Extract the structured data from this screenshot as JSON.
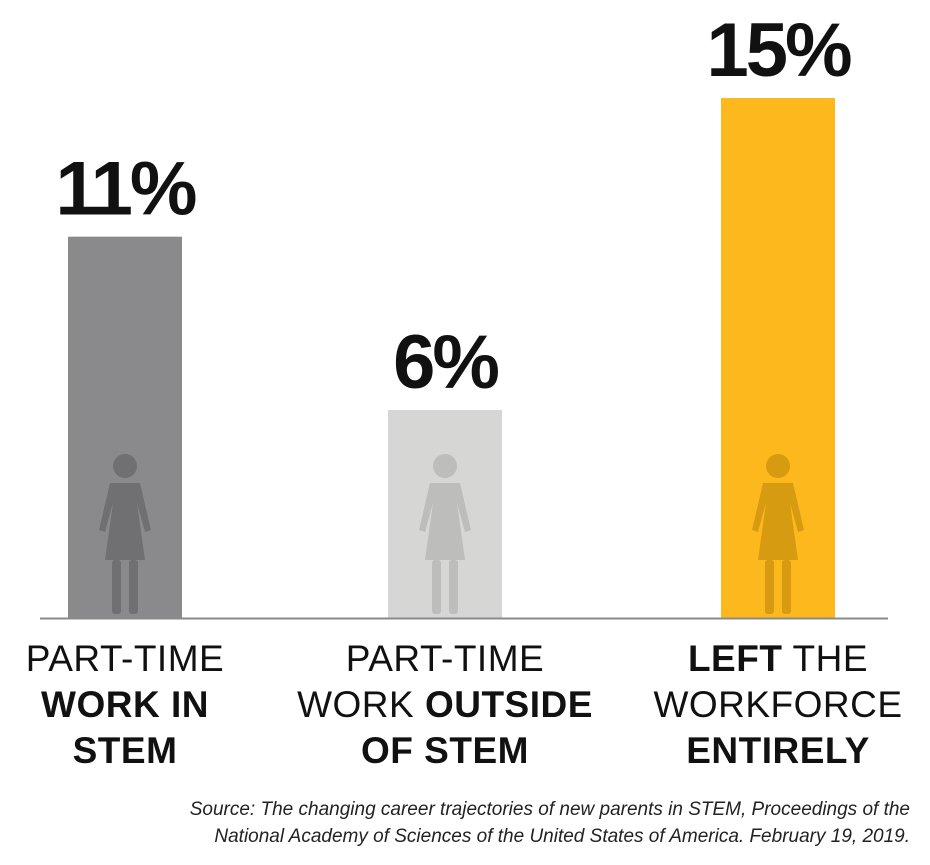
{
  "chart_data": {
    "type": "bar",
    "categories": [
      "PART-TIME WORK IN STEM",
      "PART-TIME WORK OUTSIDE OF STEM",
      "LEFT THE WORKFORCE ENTIRELY"
    ],
    "values": [
      11,
      6,
      15
    ],
    "value_labels": [
      "11%",
      "6%",
      "15%"
    ],
    "unit": "%",
    "category_lines": [
      [
        {
          "text": "PART-TIME",
          "bold": false
        },
        {
          "text": "WORK IN",
          "bold": true
        },
        {
          "text": "STEM",
          "bold": true
        }
      ],
      [
        {
          "text": "PART-TIME",
          "bold": false
        },
        {
          "text": "WORK ",
          "bold": false,
          "inline_next": true
        },
        {
          "text": "OUTSIDE",
          "bold": true
        },
        {
          "text": "OF STEM",
          "bold": true
        }
      ],
      [
        {
          "text": "LEFT",
          "bold": true,
          "inline_next": true
        },
        {
          "text": " THE",
          "bold": false
        },
        {
          "text": "WORKFORCE",
          "bold": false
        },
        {
          "text": "ENTIRELY",
          "bold": true
        }
      ]
    ],
    "colors": [
      "#8a8a8c",
      "#d6d6d4",
      "#fdb81e"
    ],
    "figure_colors": [
      "#707072",
      "#bdbdbb",
      "#d79b12"
    ],
    "ylim": [
      0,
      15
    ],
    "grid": false,
    "legend": "none",
    "xlabel": "",
    "ylabel": "",
    "title": ""
  },
  "icons": [
    "woman-figure-icon",
    "woman-figure-icon",
    "woman-figure-icon"
  ],
  "source_note": {
    "line1": "Source: The changing career trajectories of new parents in STEM, Proceedings of the",
    "line2": "National Academy of Sciences of the United States of America. February 19, 2019."
  }
}
